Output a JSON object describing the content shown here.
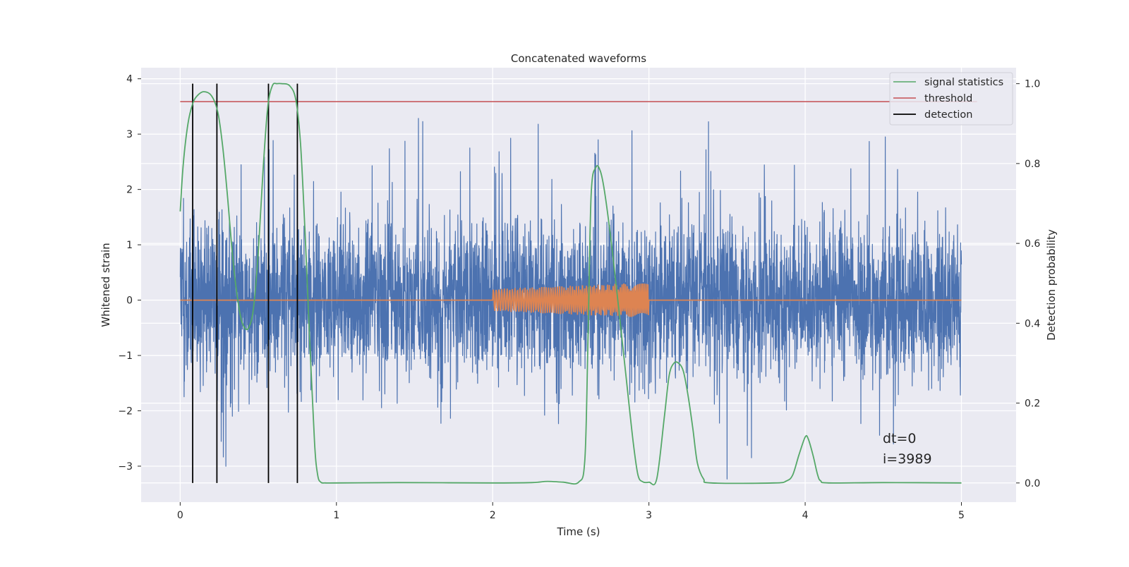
{
  "chart_data": {
    "type": "line",
    "title": "Concatenated waveforms",
    "xlabel": "Time (s)",
    "ylabel": "Whitened strain",
    "y2label": "Detection probability",
    "xlim": [
      -0.25,
      5.35
    ],
    "ylim": [
      -3.65,
      4.2
    ],
    "y2lim": [
      -0.048,
      1.04
    ],
    "xticks": [
      0,
      1,
      2,
      3,
      4,
      5
    ],
    "yticks": [
      -3,
      -2,
      -1,
      0,
      1,
      2,
      3,
      4
    ],
    "y2ticks": [
      0.0,
      0.2,
      0.4,
      0.6,
      0.8,
      1.0
    ],
    "grid": true,
    "legend_position": "top-right",
    "colors": {
      "strain": "#4c72b0",
      "injected_signal": "#dd8452",
      "signal_statistics": "#55a868",
      "threshold": "#c44e52",
      "detection": "#000000",
      "background": "#eaeaf2",
      "grid": "#ffffff"
    },
    "series": [
      {
        "key": "strain",
        "axis": "left",
        "description_x_range": [
          0,
          5
        ],
        "noise_std": 0.72,
        "peak_max": 3.6,
        "peak_min": -3.4
      },
      {
        "key": "injected_signal",
        "axis": "left",
        "x_range": [
          0,
          5
        ],
        "chirp_window": [
          2.0,
          3.0
        ],
        "amplitude_start": 0.2,
        "amplitude_end": 0.32
      },
      {
        "name": "signal statistics",
        "axis": "right",
        "x": [
          0.0,
          0.02,
          0.05,
          0.08,
          0.11,
          0.15,
          0.2,
          0.24,
          0.27,
          0.3,
          0.34,
          0.38,
          0.41,
          0.44,
          0.47,
          0.5,
          0.53,
          0.56,
          0.59,
          0.62,
          0.65,
          0.7,
          0.74,
          0.77,
          0.8,
          0.83,
          0.86,
          0.88,
          0.9,
          0.93,
          1.0,
          1.4,
          2.0,
          2.25,
          2.35,
          2.45,
          2.55,
          2.59,
          2.61,
          2.63,
          2.66,
          2.69,
          2.72,
          2.76,
          2.8,
          2.85,
          2.9,
          2.93,
          2.96,
          3.0,
          3.05,
          3.1,
          3.13,
          3.16,
          3.19,
          3.22,
          3.25,
          3.28,
          3.31,
          3.35,
          3.4,
          3.8,
          3.88,
          3.92,
          3.96,
          4.0,
          4.02,
          4.05,
          4.08,
          4.1,
          4.15,
          4.5,
          5.0
        ],
        "y": [
          0.68,
          0.8,
          0.9,
          0.95,
          0.97,
          0.98,
          0.97,
          0.93,
          0.85,
          0.73,
          0.55,
          0.43,
          0.39,
          0.39,
          0.44,
          0.58,
          0.78,
          0.94,
          0.995,
          1.0,
          1.0,
          0.995,
          0.96,
          0.85,
          0.62,
          0.35,
          0.1,
          0.02,
          0.002,
          0.0,
          0.0,
          0.001,
          0.0,
          0.001,
          0.004,
          0.002,
          0.002,
          0.06,
          0.36,
          0.72,
          0.79,
          0.78,
          0.72,
          0.6,
          0.46,
          0.28,
          0.1,
          0.02,
          0.003,
          0.002,
          0.01,
          0.17,
          0.27,
          0.3,
          0.3,
          0.28,
          0.22,
          0.14,
          0.05,
          0.01,
          0.0,
          0.0,
          0.005,
          0.02,
          0.07,
          0.115,
          0.11,
          0.07,
          0.02,
          0.005,
          0.0,
          0.001,
          0.0
        ]
      },
      {
        "name": "threshold",
        "axis": "right",
        "value": 0.955
      },
      {
        "name": "detection",
        "axis": "right",
        "x": [
          0.08,
          0.235,
          0.565,
          0.75
        ],
        "y_range": [
          0.0,
          1.0
        ]
      }
    ],
    "annotations": [
      "dt=0",
      "i=3989"
    ]
  }
}
